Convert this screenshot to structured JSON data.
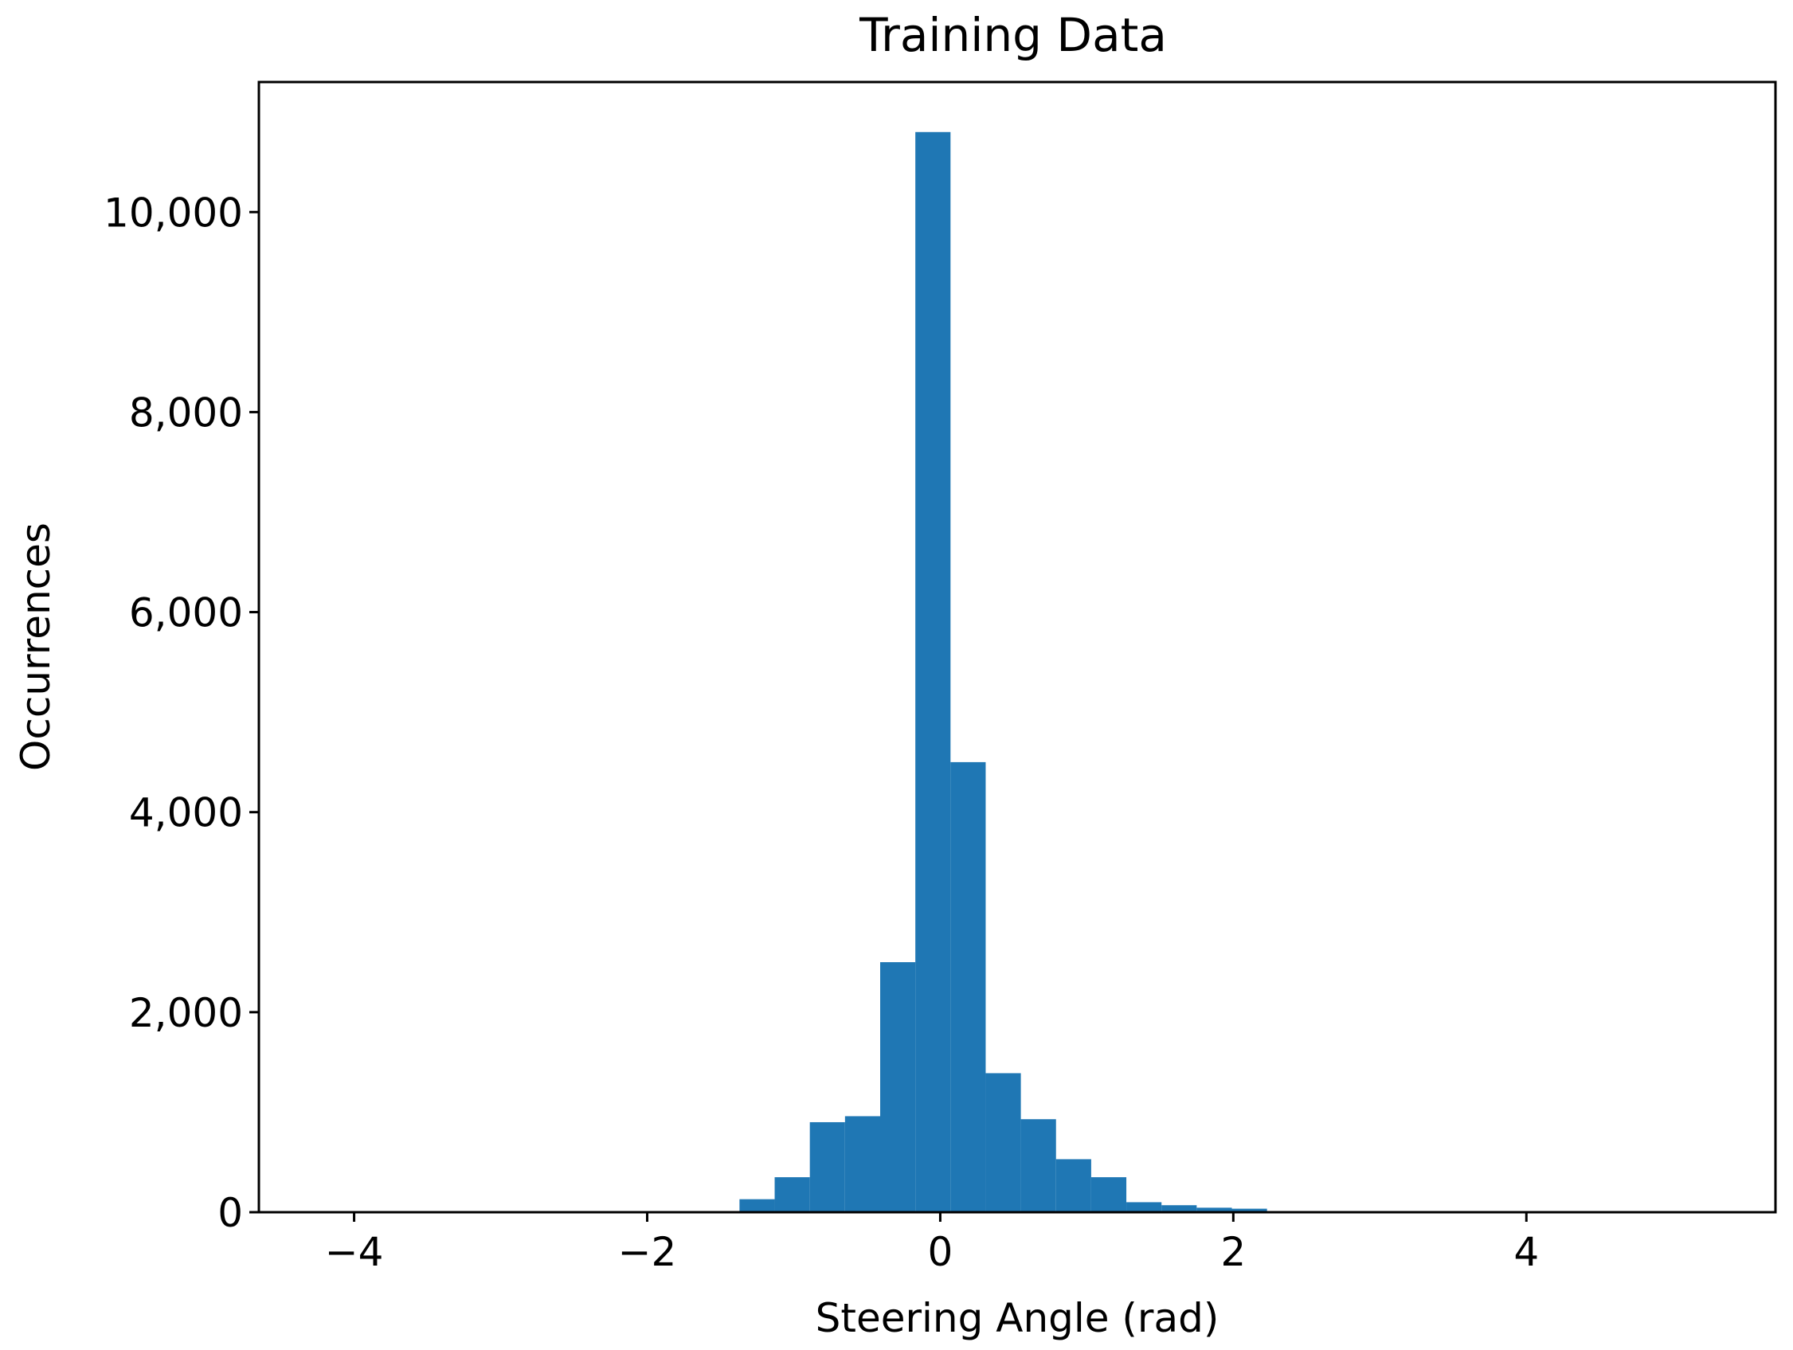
{
  "chart_data": {
    "type": "bar",
    "title": "Training Data",
    "xlabel": "Steering Angle (rad)",
    "ylabel": "Occurrences",
    "xlim": [
      -4.65,
      5.7
    ],
    "ylim": [
      0,
      11300
    ],
    "bar_color": "#1f77b4",
    "grid": false,
    "xticks": [
      {
        "value": -4,
        "label": "−4"
      },
      {
        "value": -2,
        "label": "−2"
      },
      {
        "value": 0,
        "label": "0"
      },
      {
        "value": 2,
        "label": "2"
      },
      {
        "value": 4,
        "label": "4"
      }
    ],
    "yticks": [
      {
        "value": 0,
        "label": "0"
      },
      {
        "value": 2000,
        "label": "2,000"
      },
      {
        "value": 4000,
        "label": "4,000"
      },
      {
        "value": 6000,
        "label": "6,000"
      },
      {
        "value": 8000,
        "label": "8,000"
      },
      {
        "value": 10000,
        "label": "10,000"
      }
    ],
    "bins": [
      {
        "x0": -1.37,
        "x1": -1.13,
        "value": 130
      },
      {
        "x0": -1.13,
        "x1": -0.89,
        "value": 350
      },
      {
        "x0": -0.89,
        "x1": -0.65,
        "value": 900
      },
      {
        "x0": -0.65,
        "x1": -0.41,
        "value": 960
      },
      {
        "x0": -0.41,
        "x1": -0.17,
        "value": 2500
      },
      {
        "x0": -0.17,
        "x1": 0.07,
        "value": 10800
      },
      {
        "x0": 0.07,
        "x1": 0.31,
        "value": 4500
      },
      {
        "x0": 0.31,
        "x1": 0.55,
        "value": 1390
      },
      {
        "x0": 0.55,
        "x1": 0.79,
        "value": 930
      },
      {
        "x0": 0.79,
        "x1": 1.03,
        "value": 530
      },
      {
        "x0": 1.03,
        "x1": 1.27,
        "value": 350
      },
      {
        "x0": 1.27,
        "x1": 1.51,
        "value": 100
      },
      {
        "x0": 1.51,
        "x1": 1.75,
        "value": 70
      },
      {
        "x0": 1.75,
        "x1": 1.99,
        "value": 45
      },
      {
        "x0": 1.99,
        "x1": 2.23,
        "value": 35
      }
    ]
  }
}
